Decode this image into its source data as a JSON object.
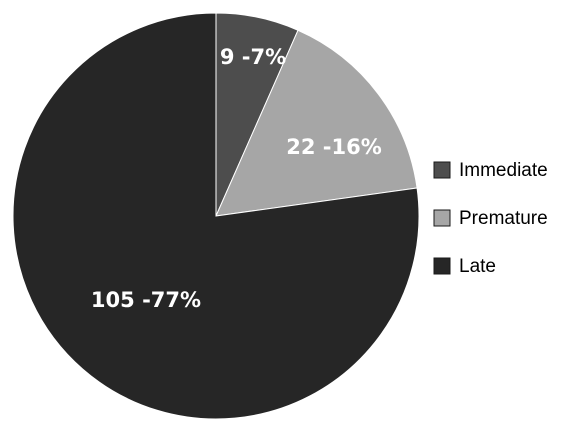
{
  "chart_data": {
    "type": "pie",
    "title": "",
    "start_angle_deg": 0,
    "direction": "clockwise",
    "legend_position": "right",
    "slices": [
      {
        "name": "Immediate",
        "value": 9,
        "percent": 7,
        "label": "9 -7%",
        "color": "#4d4d4d"
      },
      {
        "name": "Premature",
        "value": 22,
        "percent": 16,
        "label": "22 -16%",
        "color": "#a6a6a6"
      },
      {
        "name": "Late",
        "value": 105,
        "percent": 77,
        "label": "105 -77%",
        "color": "#262626"
      }
    ]
  }
}
